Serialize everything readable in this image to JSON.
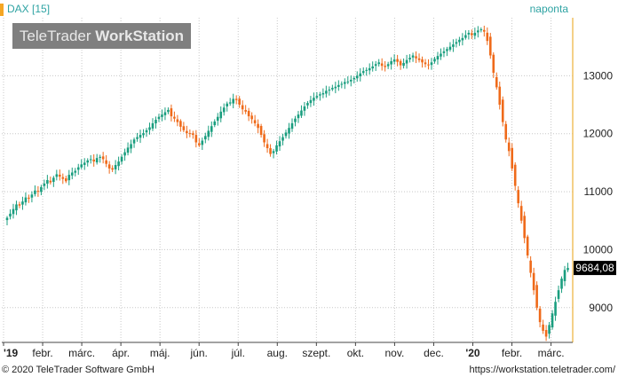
{
  "header": {
    "symbol_label": "DAX [15]",
    "period_label": "naponta"
  },
  "watermark": {
    "part1": "TeleTrader ",
    "part2": "WorkStation"
  },
  "footer": {
    "copyright": "© 2020 TeleTrader Software GmbH",
    "url": "https://workstation.teletrader.com/"
  },
  "colors": {
    "up": "#1a9e7f",
    "down": "#ef6a1a",
    "grid": "#c8c8c8",
    "axis": "#f0c060",
    "accent": "#2ea3a3"
  },
  "chart_data": {
    "type": "candlestick",
    "title": "DAX [15]",
    "interval": "naponta",
    "ylim": [
      8400,
      14000
    ],
    "y_ticks": [
      9000,
      10000,
      11000,
      12000,
      13000
    ],
    "y_tick_labels": [
      "9000",
      "10000",
      "11000",
      "12000",
      "13000"
    ],
    "x_tick_labels": [
      "'19",
      "febr.",
      "márc.",
      "ápr.",
      "máj.",
      "jún.",
      "júl.",
      "aug.",
      "szept.",
      "okt.",
      "nov.",
      "dec.",
      "'20",
      "febr.",
      "márc."
    ],
    "last_value": 9684.08,
    "last_value_label": "9684,08",
    "grid": true,
    "close": [
      10550,
      10620,
      10700,
      10780,
      10760,
      10830,
      10900,
      10880,
      10950,
      11020,
      11000,
      11080,
      11140,
      11200,
      11160,
      11240,
      11300,
      11260,
      11220,
      11180,
      11290,
      11330,
      11360,
      11420,
      11470,
      11500,
      11540,
      11560,
      11520,
      11580,
      11600,
      11560,
      11480,
      11400,
      11380,
      11460,
      11520,
      11600,
      11680,
      11760,
      11820,
      11900,
      11940,
      11980,
      12010,
      12060,
      12110,
      12180,
      12240,
      12290,
      12330,
      12370,
      12410,
      12300,
      12260,
      12200,
      12120,
      12060,
      12010,
      12000,
      11980,
      11850,
      11800,
      11880,
      11960,
      12050,
      12130,
      12210,
      12290,
      12380,
      12450,
      12520,
      12540,
      12600,
      12580,
      12500,
      12420,
      12380,
      12300,
      12250,
      12180,
      12100,
      11980,
      11850,
      11750,
      11650,
      11700,
      11800,
      11870,
      11940,
      12020,
      12100,
      12180,
      12260,
      12330,
      12400,
      12470,
      12530,
      12580,
      12620,
      12650,
      12680,
      12700,
      12740,
      12760,
      12790,
      12810,
      12840,
      12860,
      12890,
      12900,
      12930,
      12960,
      13000,
      13040,
      13080,
      13100,
      13130,
      13160,
      13200,
      13230,
      13170,
      13150,
      13200,
      13250,
      13280,
      13240,
      13180,
      13220,
      13270,
      13310,
      13350,
      13300,
      13270,
      13230,
      13200,
      13180,
      13230,
      13290,
      13340,
      13380,
      13420,
      13460,
      13500,
      13540,
      13580,
      13620,
      13650,
      13700,
      13740,
      13700,
      13740,
      13780,
      13800,
      13760,
      13600,
      13350,
      13050,
      12800,
      12500,
      12200,
      11900,
      11700,
      11400,
      11100,
      10800,
      10500,
      10200,
      9900,
      9600,
      9300,
      9000,
      8750,
      8600,
      8500,
      8700,
      8900,
      9100,
      9300,
      9500,
      9650,
      9684
    ]
  }
}
